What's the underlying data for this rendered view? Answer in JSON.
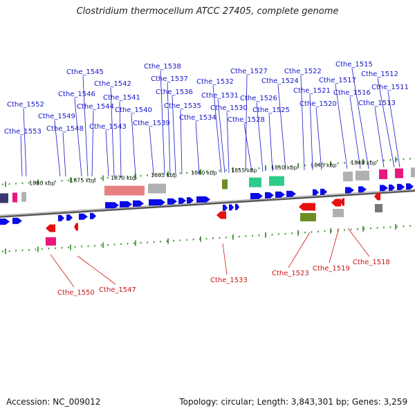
{
  "title": "Clostridium thermocellum ATCC 27405, complete genome",
  "footer": {
    "accession": "Accession: NC_009012",
    "topology": "Topology: circular; Length: 3,843,301 bp; Genes: 3,259"
  },
  "colors": {
    "forward_gene": "#0a0ae6",
    "reverse_gene": "#e61010",
    "label_forward": "#1414c8",
    "label_reverse": "#c81414",
    "backbone": "#8c8c8c",
    "tick": "#2a8a1a",
    "pink_feature": "#e6197f",
    "salmon_feature": "#e88080",
    "green_feature": "#2ecc8a",
    "olive_feature": "#6b8e23",
    "gray_feature": "#b0b0b0"
  },
  "kbp_labels": [
    "1880 kbp",
    "1875 kbp",
    "1870 kbp",
    "1865 kbp",
    "1860 kbp",
    "1855 kbp",
    "1850 kbp",
    "1845 kbp",
    "1840 kbp"
  ],
  "forward_labels": [
    "Cthe_1553",
    "Cthe_1552",
    "Cthe_1549",
    "Cthe_1548",
    "Cthe_1546",
    "Cthe_1545",
    "Cthe_1544",
    "Cthe_1543",
    "Cthe_1542",
    "Cthe_1541",
    "Cthe_1540",
    "Cthe_1539",
    "Cthe_1538",
    "Cthe_1537",
    "Cthe_1536",
    "Cthe_1535",
    "Cthe_1534",
    "Cthe_1532",
    "Cthe_1531",
    "Cthe_1530",
    "Cthe_1528",
    "Cthe_1527",
    "Cthe_1526",
    "Cthe_1525",
    "Cthe_1524",
    "Cthe_1522",
    "Cthe_1521",
    "Cthe_1520",
    "Cthe_1517",
    "Cthe_1516",
    "Cthe_1515",
    "Cthe_1513",
    "Cthe_1512",
    "Cthe_1511"
  ],
  "reverse_labels": [
    "Cthe_1550",
    "Cthe_1547",
    "Cthe_1533",
    "Cthe_1523",
    "Cthe_1519",
    "Cthe_1518"
  ]
}
